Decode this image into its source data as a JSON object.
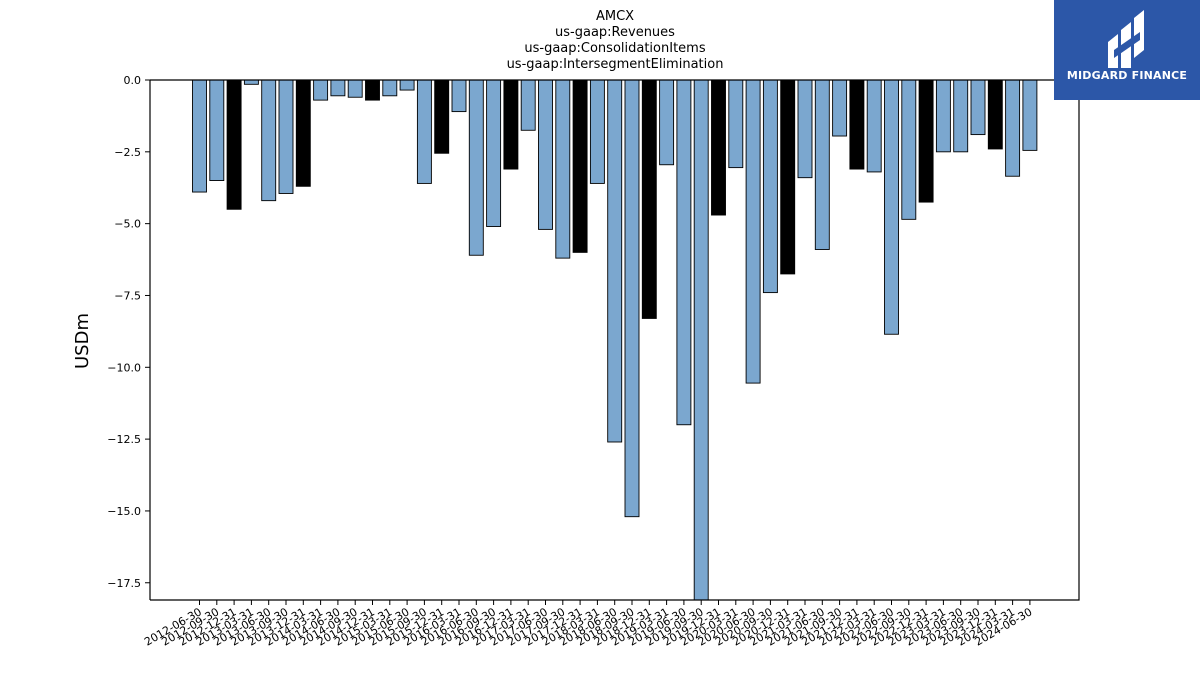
{
  "colors": {
    "normal": "#7BA7CF",
    "highlight": "#000000",
    "edge": "#000000",
    "logo_bg": "#2C57A8"
  },
  "logo": {
    "text": "MIDGARD FINANCE",
    "icon": "midgard-logo-icon"
  },
  "chart_data": {
    "type": "bar",
    "title_lines": [
      "AMCX",
      "us-gaap:Revenues",
      "us-gaap:ConsolidationItems",
      "us-gaap:IntersegmentElimination"
    ],
    "xlabel": "",
    "ylabel": "USDm",
    "ylim": [
      -18.1,
      0.0
    ],
    "yticks": [
      0.0,
      -2.5,
      -5.0,
      -7.5,
      -10.0,
      -12.5,
      -15.0,
      -17.5
    ],
    "ytick_labels": [
      "0.0",
      "−2.5",
      "−5.0",
      "−7.5",
      "−10.0",
      "−12.5",
      "−15.0",
      "−17.5"
    ],
    "grid": false,
    "categories": [
      "2012-06-30",
      "2012-09-30",
      "2012-12-31",
      "2013-03-31",
      "2013-06-30",
      "2013-09-30",
      "2013-12-31",
      "2014-03-31",
      "2014-06-30",
      "2014-09-30",
      "2014-12-31",
      "2015-03-31",
      "2015-06-30",
      "2015-09-30",
      "2015-12-31",
      "2016-03-31",
      "2016-06-30",
      "2016-09-30",
      "2016-12-31",
      "2017-03-31",
      "2017-06-30",
      "2017-09-30",
      "2017-12-31",
      "2018-03-31",
      "2018-06-30",
      "2018-09-30",
      "2018-12-31",
      "2019-03-31",
      "2019-06-30",
      "2019-09-30",
      "2019-12-31",
      "2020-03-31",
      "2020-06-30",
      "2020-09-30",
      "2020-12-31",
      "2021-03-31",
      "2021-06-30",
      "2021-09-30",
      "2021-12-31",
      "2022-03-31",
      "2022-06-30",
      "2022-09-30",
      "2022-12-31",
      "2023-03-31",
      "2023-06-30",
      "2023-09-30",
      "2023-12-31",
      "2024-03-31",
      "2024-06-30"
    ],
    "values": [
      -3.9,
      -3.5,
      -4.5,
      -0.15,
      -4.2,
      -3.95,
      -3.7,
      -0.7,
      -0.55,
      -0.6,
      -0.7,
      -0.55,
      -0.35,
      -3.6,
      -2.55,
      -1.1,
      -6.1,
      -5.1,
      -3.1,
      -1.75,
      -5.2,
      -6.2,
      -6.0,
      -3.6,
      -12.6,
      -15.2,
      -8.3,
      -2.95,
      -12.0,
      -18.1,
      -4.7,
      -3.05,
      -10.55,
      -7.4,
      -6.75,
      -3.4,
      -5.9,
      -1.95,
      -3.1,
      -3.2,
      -8.85,
      -4.85,
      -4.25,
      -2.5,
      -2.5,
      -1.9,
      -2.4,
      -3.35,
      -2.45
    ],
    "highlight": [
      false,
      false,
      true,
      false,
      false,
      false,
      true,
      false,
      false,
      false,
      true,
      false,
      false,
      false,
      true,
      false,
      false,
      false,
      true,
      false,
      false,
      false,
      true,
      false,
      false,
      false,
      true,
      false,
      false,
      false,
      true,
      false,
      false,
      false,
      true,
      false,
      false,
      false,
      true,
      false,
      false,
      false,
      true,
      false,
      false,
      false,
      true,
      false,
      false
    ]
  }
}
